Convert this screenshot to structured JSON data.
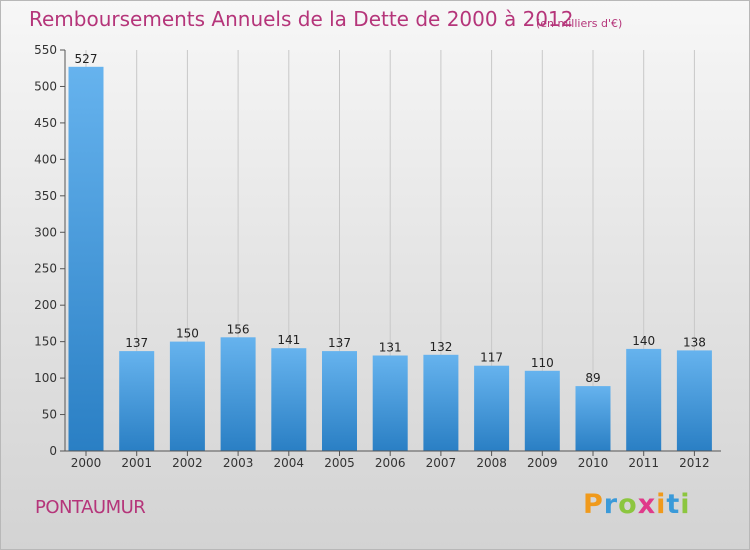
{
  "header": {
    "title": "Remboursements Annuels de la Dette de 2000 à 2012",
    "unit": "(en milliers d'€)"
  },
  "commune": "PONTAUMUR",
  "logo": {
    "letters": [
      "P",
      "r",
      "o",
      "x",
      "i",
      "t",
      "i"
    ],
    "colors": [
      "#f09a1c",
      "#3a9ad9",
      "#8cc63f",
      "#e03a8a",
      "#f09a1c",
      "#3a9ad9",
      "#8cc63f"
    ]
  },
  "colors": {
    "bar_top": "#66b3ee",
    "bar_bottom": "#2a7fc4",
    "axis": "#555555",
    "grid": "#c8c8c8"
  },
  "chart_data": {
    "type": "bar",
    "title": "Remboursements Annuels de la Dette de 2000 à 2012",
    "categories": [
      "2000",
      "2001",
      "2002",
      "2003",
      "2004",
      "2005",
      "2006",
      "2007",
      "2008",
      "2009",
      "2010",
      "2011",
      "2012"
    ],
    "values": [
      527,
      137,
      150,
      156,
      141,
      137,
      131,
      132,
      117,
      110,
      89,
      140,
      138
    ],
    "value_labels": [
      "527",
      "137",
      "150",
      "156",
      "141",
      "137",
      "131",
      "132",
      "117",
      "110",
      "89",
      "140",
      "138"
    ],
    "ylim": [
      0,
      550
    ],
    "yticks": [
      0,
      50,
      100,
      150,
      200,
      250,
      300,
      350,
      400,
      450,
      500,
      550
    ],
    "ytick_labels": [
      "0",
      "50",
      "100",
      "150",
      "200",
      "250",
      "300",
      "350",
      "400",
      "450",
      "500",
      "550"
    ],
    "grid": "vertical-lines",
    "legend": "none"
  }
}
